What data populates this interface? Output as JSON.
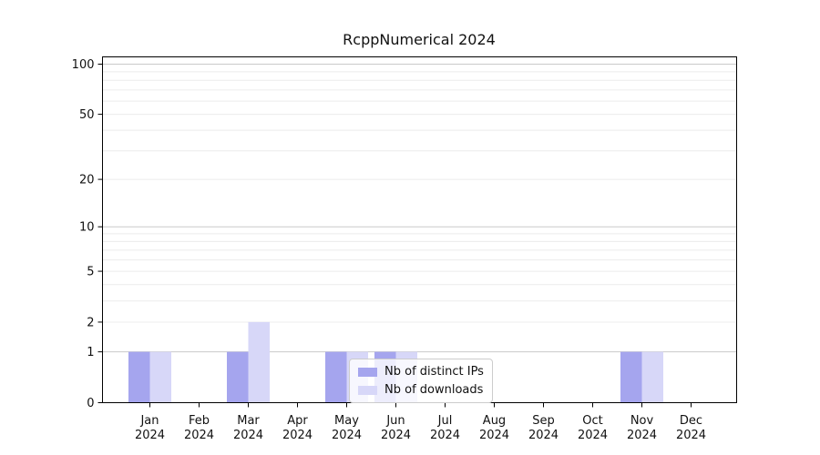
{
  "chart_data": {
    "type": "bar",
    "title": "RcppNumerical 2024",
    "categories": [
      "Jan",
      "Feb",
      "Mar",
      "Apr",
      "May",
      "Jun",
      "Jul",
      "Aug",
      "Sep",
      "Oct",
      "Nov",
      "Dec"
    ],
    "year_label": "2024",
    "series": [
      {
        "name": "Nb of distinct IPs",
        "color": "#a5a5ee",
        "values": [
          1,
          0,
          1,
          0,
          1,
          1,
          0,
          0,
          0,
          0,
          1,
          0
        ]
      },
      {
        "name": "Nb of downloads",
        "color": "#d7d7f8",
        "values": [
          1,
          0,
          2,
          0,
          1,
          1,
          0,
          0,
          0,
          0,
          1,
          0
        ]
      }
    ],
    "y_scale": "log1p",
    "y_ticks": [
      0,
      1,
      2,
      5,
      10,
      20,
      50,
      100
    ],
    "y_major_gridlines": [
      1,
      10,
      100
    ],
    "y_minor_gridlines": [
      2,
      3,
      4,
      5,
      6,
      7,
      8,
      9,
      20,
      30,
      40,
      50,
      60,
      70,
      80,
      90
    ],
    "ylim": [
      0,
      111
    ],
    "grid": true,
    "legend_position": "lower center",
    "colors": {
      "major_grid": "#c9c9c9",
      "minor_grid": "#ececec",
      "axis": "#000000",
      "text": "#111111"
    }
  }
}
